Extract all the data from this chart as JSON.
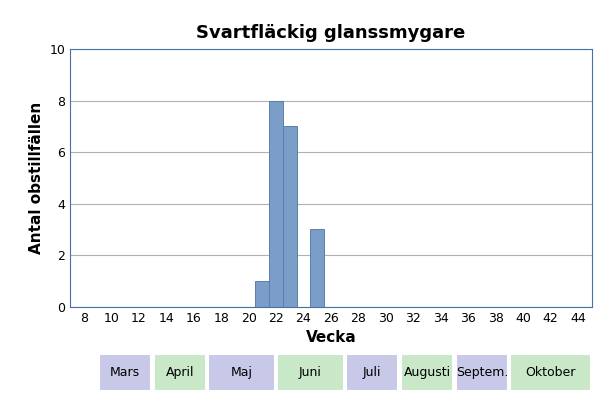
{
  "title": "Svartfläckig glanssmygare",
  "xlabel": "Vecka",
  "ylabel": "Antal obstillfällen",
  "xlim": [
    7,
    45
  ],
  "ylim": [
    0,
    10
  ],
  "xticks": [
    8,
    10,
    12,
    14,
    16,
    18,
    20,
    22,
    24,
    26,
    28,
    30,
    32,
    34,
    36,
    38,
    40,
    42,
    44
  ],
  "yticks": [
    0,
    2,
    4,
    6,
    8,
    10
  ],
  "bar_data": {
    "21": 1,
    "22": 8,
    "23": 7,
    "25": 3
  },
  "bar_color": "#7b9ec9",
  "bar_edge_color": "#5a80a8",
  "month_labels": [
    {
      "label": "Mars",
      "x_start": 9,
      "x_end": 13,
      "color": "#c8c8e8"
    },
    {
      "label": "April",
      "x_start": 13,
      "x_end": 17,
      "color": "#c8e8c8"
    },
    {
      "label": "Maj",
      "x_start": 17,
      "x_end": 22,
      "color": "#c8c8e8"
    },
    {
      "label": "Juni",
      "x_start": 22,
      "x_end": 27,
      "color": "#c8e8c8"
    },
    {
      "label": "Juli",
      "x_start": 27,
      "x_end": 31,
      "color": "#c8c8e8"
    },
    {
      "label": "Augusti",
      "x_start": 31,
      "x_end": 35,
      "color": "#c8e8c8"
    },
    {
      "label": "Septem.",
      "x_start": 35,
      "x_end": 39,
      "color": "#c8c8e8"
    },
    {
      "label": "Oktober",
      "x_start": 39,
      "x_end": 45,
      "color": "#c8e8c8"
    }
  ],
  "grid_color": "#b0b0b0",
  "background_color": "#ffffff",
  "title_fontsize": 13,
  "axis_label_fontsize": 11,
  "tick_fontsize": 9,
  "month_label_fontsize": 9
}
